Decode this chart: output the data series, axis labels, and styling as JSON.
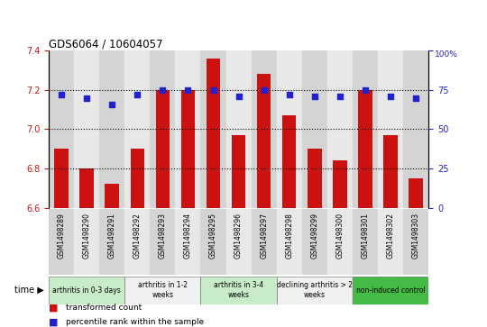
{
  "title": "GDS6064 / 10604057",
  "samples": [
    "GSM1498289",
    "GSM1498290",
    "GSM1498291",
    "GSM1498292",
    "GSM1498293",
    "GSM1498294",
    "GSM1498295",
    "GSM1498296",
    "GSM1498297",
    "GSM1498298",
    "GSM1498299",
    "GSM1498300",
    "GSM1498301",
    "GSM1498302",
    "GSM1498303"
  ],
  "transformed_count": [
    6.9,
    6.8,
    6.72,
    6.9,
    7.2,
    7.2,
    7.36,
    6.97,
    7.28,
    7.07,
    6.9,
    6.84,
    7.2,
    6.97,
    6.75
  ],
  "percentile_rank": [
    72,
    70,
    66,
    72,
    75,
    75,
    75,
    71,
    75,
    72,
    71,
    71,
    75,
    71,
    70
  ],
  "groups": [
    {
      "label": "arthritis in 0-3 days",
      "start": 0,
      "end": 3,
      "color": "#c8ecc8"
    },
    {
      "label": "arthritis in 1-2\nweeks",
      "start": 3,
      "end": 6,
      "color": "#f0f0f0"
    },
    {
      "label": "arthritis in 3-4\nweeks",
      "start": 6,
      "end": 9,
      "color": "#c8ecc8"
    },
    {
      "label": "declining arthritis > 2\nweeks",
      "start": 9,
      "end": 12,
      "color": "#f0f0f0"
    },
    {
      "label": "non-induced control",
      "start": 12,
      "end": 15,
      "color": "#44bb44"
    }
  ],
  "bar_color": "#cc1111",
  "dot_color": "#2222cc",
  "ylim_left": [
    6.6,
    7.4
  ],
  "ylim_right": [
    0,
    100
  ],
  "yticks_left": [
    6.6,
    6.8,
    7.0,
    7.2,
    7.4
  ],
  "yticks_right": [
    0,
    25,
    50,
    75,
    100
  ],
  "hlines": [
    6.8,
    7.0,
    7.2
  ],
  "bar_width": 0.55,
  "background_color": "#ffffff",
  "col_bg_even": "#d4d4d4",
  "col_bg_odd": "#e8e8e8"
}
